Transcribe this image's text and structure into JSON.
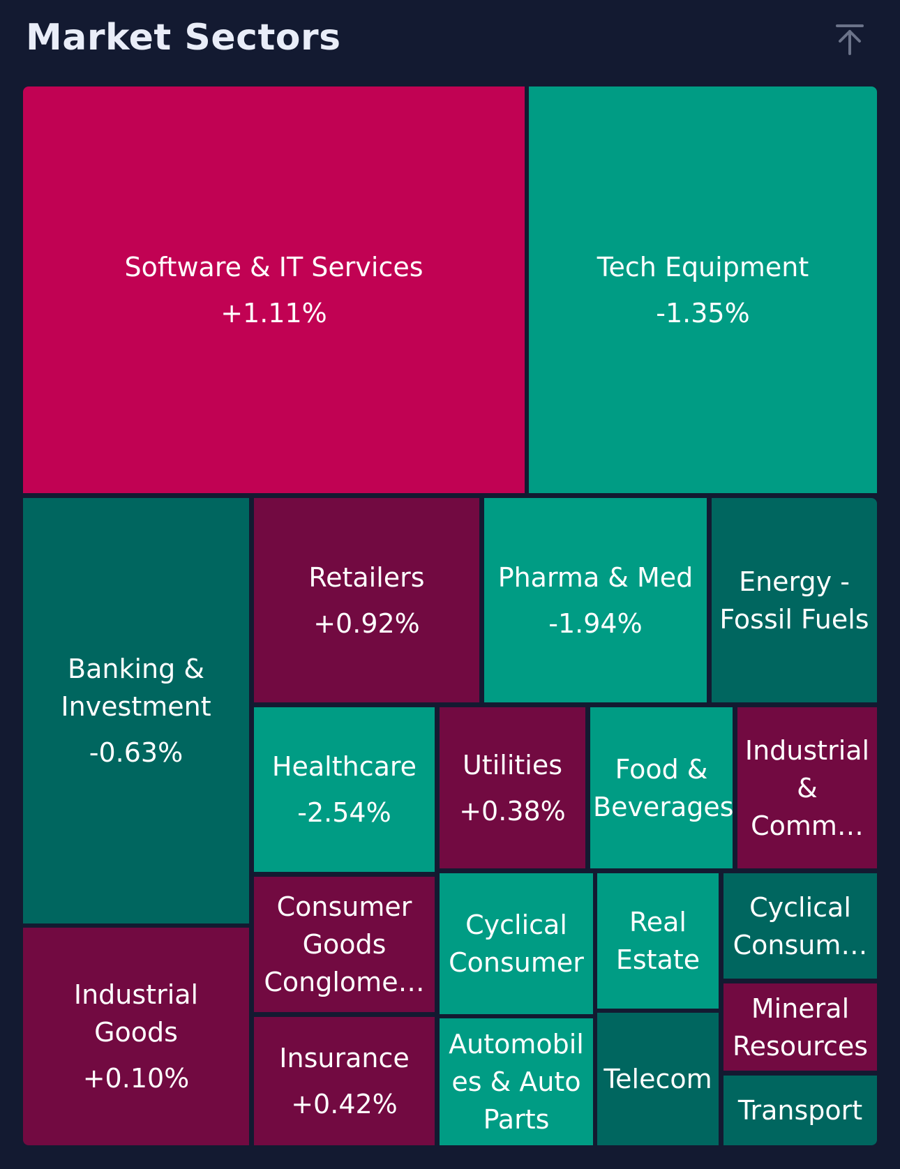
{
  "header": {
    "title": "Market Sectors",
    "scroll_top_icon": "arrow-to-top-icon"
  },
  "colors": {
    "strong_up": "#c10253",
    "up": "#720a41",
    "strong_down": "#009c84",
    "down": "#00665f"
  },
  "sectors": [
    {
      "key": "software",
      "name": "Software & IT Services",
      "change": "+1.11%"
    },
    {
      "key": "tech-equipment",
      "name": "Tech Equipment",
      "change": "-1.35%"
    },
    {
      "key": "banking",
      "name": "Banking & Investment",
      "change": "-0.63%"
    },
    {
      "key": "retailers",
      "name": "Retailers",
      "change": "+0.92%"
    },
    {
      "key": "pharma",
      "name": "Pharma & Med",
      "change": "-1.94%"
    },
    {
      "key": "energy",
      "name": "Energy - Fossil Fuels",
      "change": ""
    },
    {
      "key": "healthcare",
      "name": "Healthcare",
      "change": "-2.54%"
    },
    {
      "key": "utilities",
      "name": "Utilities",
      "change": "+0.38%"
    },
    {
      "key": "food",
      "name": "Food & Beverages",
      "change": ""
    },
    {
      "key": "industrial-comm",
      "name": "Industrial & Comm…",
      "change": ""
    },
    {
      "key": "industrial-goods",
      "name": "Industrial Goods",
      "change": "+0.10%"
    },
    {
      "key": "consumer-goods",
      "name": "Consumer Goods Conglome…",
      "change": ""
    },
    {
      "key": "cyclical-consumer",
      "name": "Cyclical Consumer",
      "change": ""
    },
    {
      "key": "real-estate",
      "name": "Real Estate",
      "change": ""
    },
    {
      "key": "cyclical-consum",
      "name": "Cyclical Consum…",
      "change": ""
    },
    {
      "key": "mineral",
      "name": "Mineral Resources",
      "change": ""
    },
    {
      "key": "insurance",
      "name": "Insurance",
      "change": "+0.42%"
    },
    {
      "key": "automobiles",
      "name": "Automobil es & Auto Parts",
      "change": ""
    },
    {
      "key": "telecom",
      "name": "Telecom",
      "change": ""
    },
    {
      "key": "transport",
      "name": "Transport",
      "change": ""
    }
  ]
}
